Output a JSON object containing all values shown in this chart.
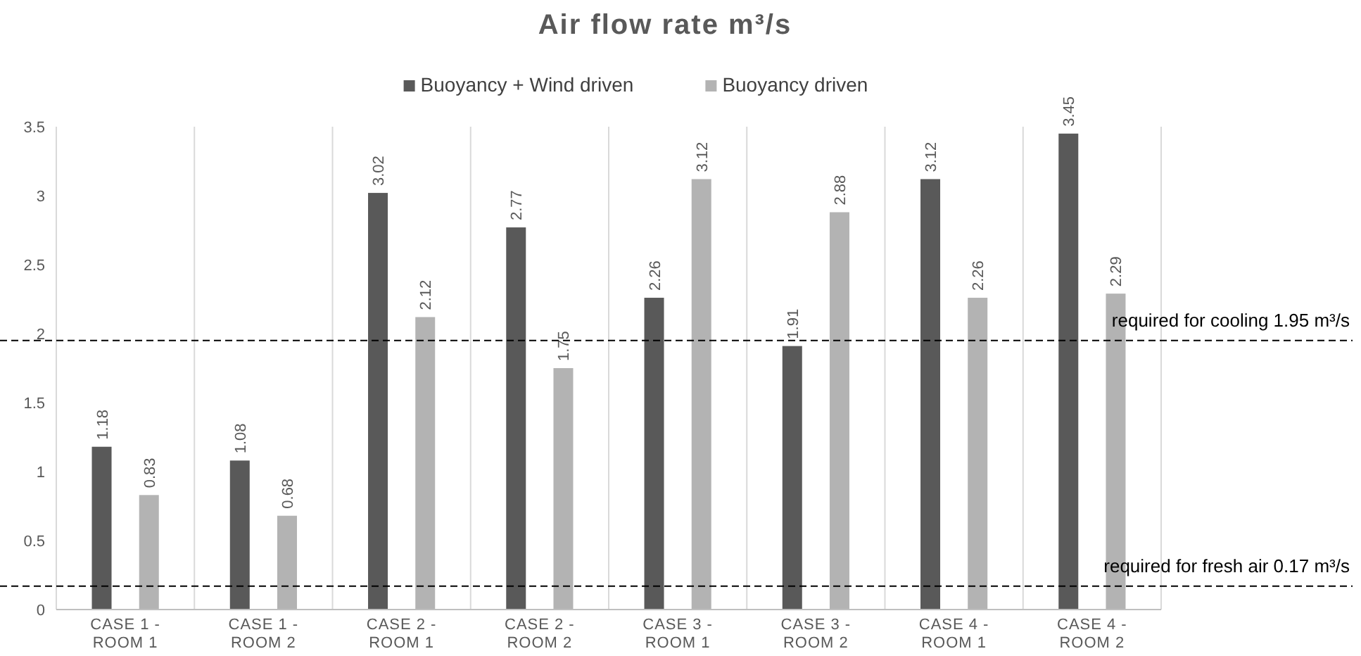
{
  "chart_data": {
    "type": "bar",
    "title": "Air flow rate m³/s",
    "categories": [
      "CASE 1 - ROOM 1",
      "CASE 1 - ROOM 2",
      "CASE 2 - ROOM 1",
      "CASE 2 - ROOM 2",
      "CASE 3 - ROOM 1",
      "CASE 3 - ROOM 2",
      "CASE 4 - ROOM 1",
      "CASE 4 - ROOM 2"
    ],
    "series": [
      {
        "name": "Buoyancy + Wind driven",
        "color": "#595959",
        "values": [
          1.18,
          1.08,
          3.02,
          2.77,
          2.26,
          1.91,
          3.12,
          3.45
        ]
      },
      {
        "name": "Buoyancy driven",
        "color": "#b3b3b3",
        "values": [
          0.83,
          0.68,
          2.12,
          1.75,
          3.12,
          2.88,
          2.26,
          2.29
        ]
      }
    ],
    "ylim": [
      0,
      3.5
    ],
    "yticks": [
      0,
      0.5,
      1,
      1.5,
      2,
      2.5,
      3,
      3.5
    ],
    "grid": "x",
    "legend": "top",
    "data_labels": true,
    "ref_lines": [
      {
        "axis": "y",
        "value": 1.95,
        "label": "required for cooling 1.95 m³/s",
        "line_style": "dashed",
        "color": "#000000"
      },
      {
        "axis": "y",
        "value": 0.17,
        "label": "required for fresh air 0.17 m³/s",
        "line_style": "dashed",
        "color": "#000000"
      }
    ]
  }
}
